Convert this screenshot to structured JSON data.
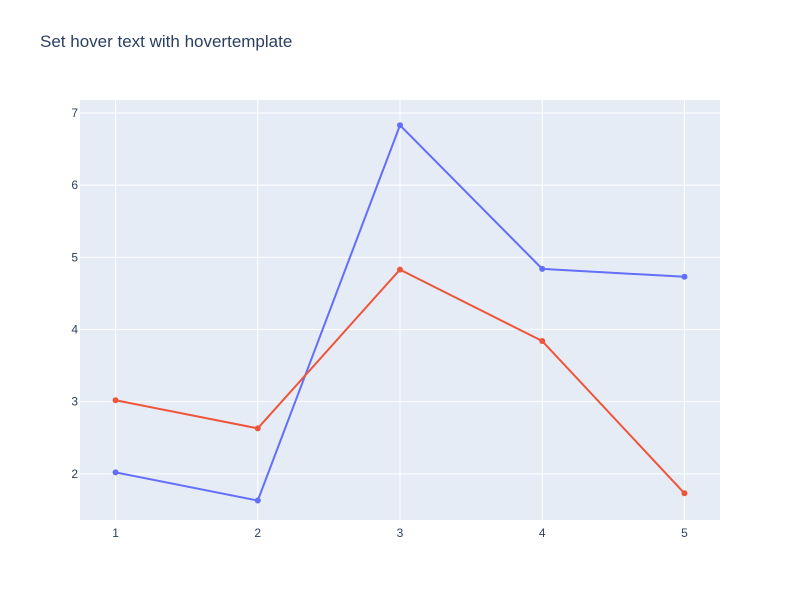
{
  "chart_data": {
    "type": "line",
    "title": "Set hover text with hovertemplate",
    "xlabel": "",
    "ylabel": "",
    "x": [
      1,
      2,
      3,
      4,
      5
    ],
    "xlim": [
      0.75,
      5.25
    ],
    "ylim": [
      1.36,
      7.18
    ],
    "xticks": [
      1,
      2,
      3,
      4,
      5
    ],
    "yticks": [
      2,
      3,
      4,
      5,
      6,
      7
    ],
    "grid": true,
    "legend": "none",
    "plot_background": "#e5ecf6",
    "gridline_color": "#ffffff",
    "text_color": "#2a3f5f",
    "series": [
      {
        "color": "#636efa",
        "values": [
          2.02,
          1.63,
          6.83,
          4.84,
          4.73
        ]
      },
      {
        "color": "#ef553b",
        "values": [
          3.02,
          2.63,
          4.83,
          3.84,
          1.73
        ]
      }
    ]
  }
}
